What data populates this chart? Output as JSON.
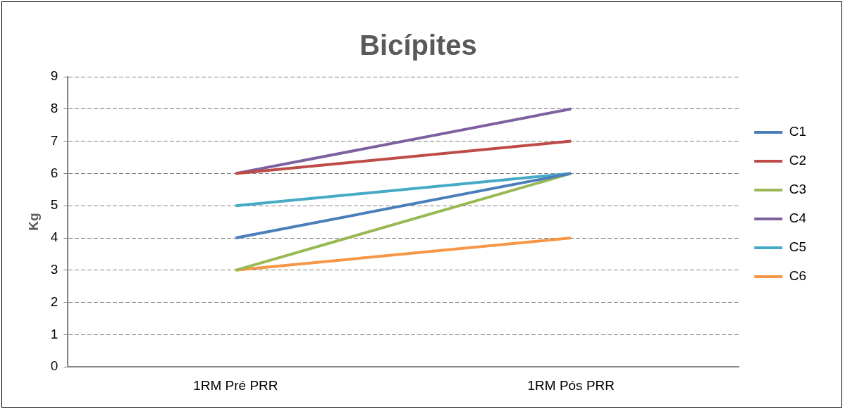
{
  "chart_data": {
    "type": "line",
    "title": "Bicípites",
    "ylabel": "Kg",
    "categories": [
      "1RM Pré PRR",
      "1RM Pós PRR"
    ],
    "series": [
      {
        "name": "C1",
        "color": "#4a7ebb",
        "values": [
          4,
          6
        ]
      },
      {
        "name": "C2",
        "color": "#be4b48",
        "values": [
          6,
          7
        ]
      },
      {
        "name": "C3",
        "color": "#98b954",
        "values": [
          3,
          6
        ]
      },
      {
        "name": "C4",
        "color": "#7d60a0",
        "values": [
          6,
          8
        ]
      },
      {
        "name": "C5",
        "color": "#46aac5",
        "values": [
          5,
          6
        ]
      },
      {
        "name": "C6",
        "color": "#f79646",
        "values": [
          3,
          4
        ]
      }
    ],
    "ylim": [
      0,
      9
    ],
    "yticks": [
      0,
      1,
      2,
      3,
      4,
      5,
      6,
      7,
      8,
      9
    ],
    "grid": "y",
    "legend": "right",
    "marker": "none",
    "line_style": "solid"
  }
}
